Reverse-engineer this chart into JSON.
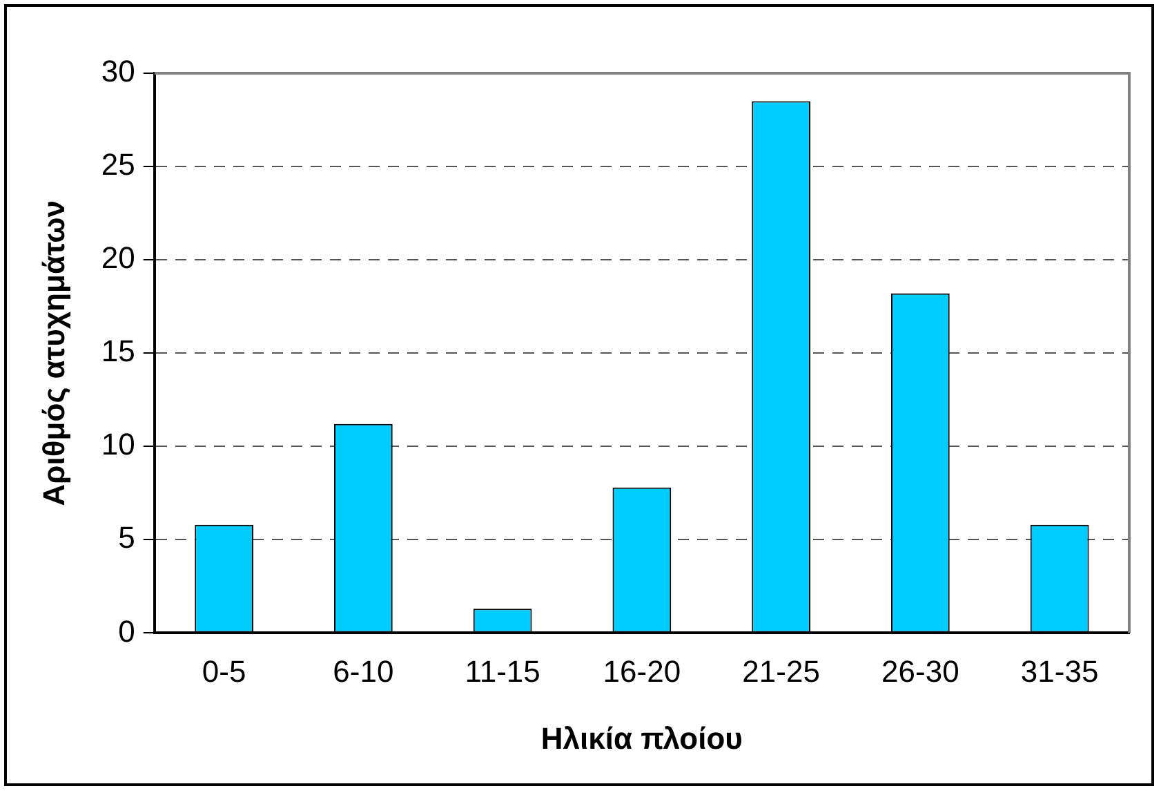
{
  "chart_data": {
    "type": "bar",
    "xlabel": "Ηλικία πλοίου",
    "ylabel": "Αριθμός ατυχημάτων",
    "categories": [
      "0-5",
      "6-10",
      "11-15",
      "16-20",
      "21-25",
      "26-30",
      "31-35"
    ],
    "values": [
      5.8,
      11.2,
      1.3,
      7.8,
      28.5,
      18.2,
      5.8
    ],
    "color": "#00ccff",
    "ylim": [
      0,
      30
    ],
    "yticks": [
      0,
      5,
      10,
      15,
      20,
      25,
      30
    ],
    "grid": "y",
    "legend": false
  }
}
